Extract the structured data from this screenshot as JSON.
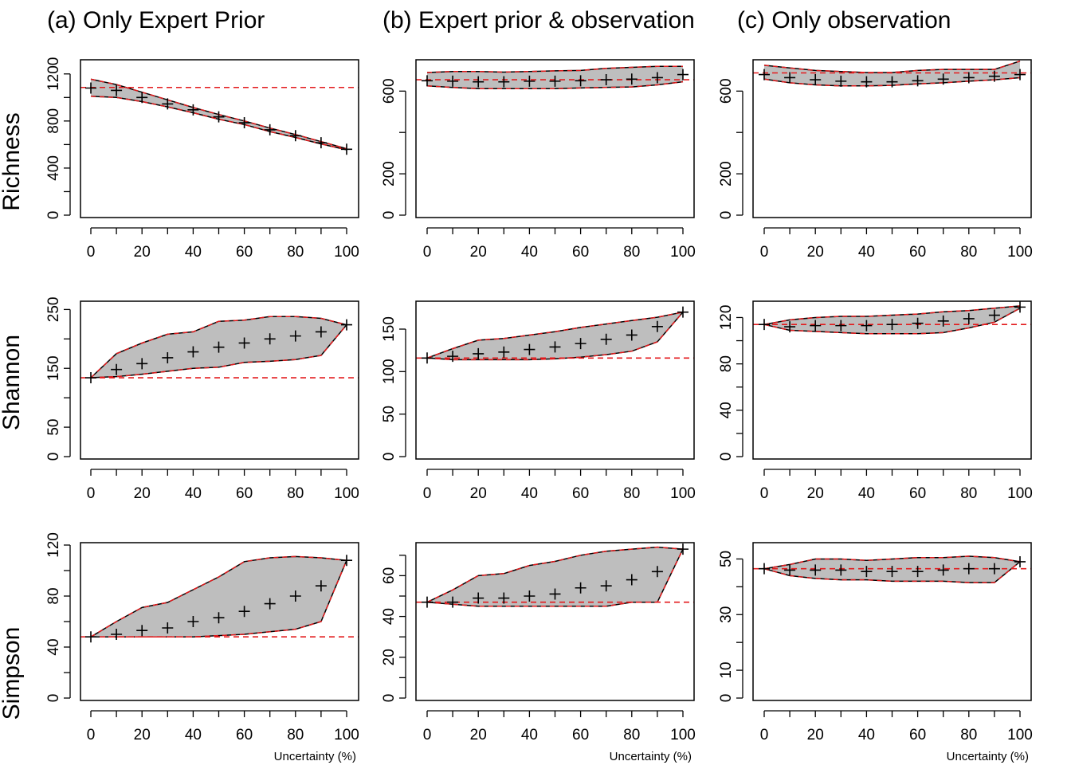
{
  "column_titles": [
    "(a) Only Expert Prior",
    "(b) Expert prior & observation",
    "(c) Only observation"
  ],
  "row_labels": [
    "Richness",
    "Shannon",
    "Simpson"
  ],
  "x_axis_label": "Uncertainty (%)",
  "colors": {
    "band_fill": "#bebebe",
    "line": "#000000",
    "reference": "#e31a1c"
  },
  "chart_data": [
    {
      "type": "area",
      "panel": "Richness / (a) Only Expert Prior",
      "xlim": [
        0,
        100
      ],
      "ylim": [
        0,
        1300
      ],
      "xticks": [
        0,
        20,
        40,
        60,
        80,
        100
      ],
      "yticks": [
        0,
        400,
        800,
        1200
      ],
      "reference": 1085,
      "x": [
        0,
        10,
        20,
        30,
        40,
        50,
        60,
        70,
        80,
        90,
        100
      ],
      "mean": [
        1080,
        1060,
        1000,
        945,
        895,
        835,
        785,
        725,
        675,
        615,
        560
      ],
      "upper": [
        1155,
        1110,
        1045,
        980,
        915,
        855,
        800,
        740,
        685,
        625,
        565
      ],
      "lower": [
        1010,
        1000,
        965,
        920,
        870,
        815,
        770,
        710,
        660,
        605,
        555
      ]
    },
    {
      "type": "area",
      "panel": "Shannon / (a) Only Expert Prior",
      "xlim": [
        0,
        100
      ],
      "ylim": [
        0,
        260
      ],
      "xticks": [
        0,
        20,
        40,
        60,
        80,
        100
      ],
      "yticks": [
        0,
        50,
        150,
        250
      ],
      "reference": 134,
      "x": [
        0,
        10,
        20,
        30,
        40,
        50,
        60,
        70,
        80,
        90,
        100
      ],
      "mean": [
        134,
        148,
        158,
        168,
        178,
        186,
        193,
        200,
        205,
        212,
        224
      ],
      "upper": [
        134,
        175,
        193,
        208,
        212,
        230,
        232,
        238,
        238,
        235,
        224
      ],
      "lower": [
        134,
        136,
        140,
        145,
        150,
        152,
        160,
        162,
        165,
        172,
        224
      ]
    },
    {
      "type": "area",
      "panel": "Simpson / (a) Only Expert Prior",
      "xlim": [
        0,
        100
      ],
      "ylim": [
        0,
        120
      ],
      "xticks": [
        0,
        20,
        40,
        60,
        80,
        100
      ],
      "yticks": [
        0,
        40,
        80,
        120
      ],
      "reference": 48,
      "x": [
        0,
        10,
        20,
        30,
        40,
        50,
        60,
        70,
        80,
        90,
        100
      ],
      "mean": [
        48,
        50,
        53,
        55,
        60,
        63,
        68,
        74,
        80,
        88,
        108
      ],
      "upper": [
        48,
        60,
        71,
        75,
        85,
        95,
        107,
        110,
        111,
        110,
        108
      ],
      "lower": [
        48,
        48,
        48,
        48,
        48,
        49,
        50,
        52,
        54,
        60,
        108
      ]
    },
    {
      "type": "area",
      "panel": "Richness / (b) Expert prior & observation",
      "xlim": [
        0,
        100
      ],
      "ylim": [
        0,
        740
      ],
      "xticks": [
        0,
        20,
        40,
        60,
        80,
        100
      ],
      "yticks": [
        0,
        200,
        600
      ],
      "reference": 655,
      "x": [
        0,
        10,
        20,
        30,
        40,
        50,
        60,
        70,
        80,
        90,
        100
      ],
      "mean": [
        650,
        648,
        645,
        645,
        648,
        648,
        650,
        655,
        658,
        665,
        680
      ],
      "upper": [
        690,
        695,
        695,
        692,
        695,
        698,
        700,
        710,
        715,
        720,
        720
      ],
      "lower": [
        625,
        618,
        612,
        612,
        612,
        612,
        615,
        618,
        620,
        630,
        645
      ]
    },
    {
      "type": "area",
      "panel": "Shannon / (b) Expert prior & observation",
      "xlim": [
        0,
        100
      ],
      "ylim": [
        0,
        180
      ],
      "xticks": [
        0,
        20,
        40,
        60,
        80,
        100
      ],
      "yticks": [
        0,
        50,
        100,
        150
      ],
      "reference": 116,
      "x": [
        0,
        10,
        20,
        30,
        40,
        50,
        60,
        70,
        80,
        90,
        100
      ],
      "mean": [
        116,
        118,
        121,
        123,
        126,
        129,
        133,
        138,
        143,
        153,
        170
      ],
      "upper": [
        116,
        127,
        137,
        139,
        143,
        147,
        152,
        156,
        160,
        164,
        170
      ],
      "lower": [
        116,
        114,
        114,
        114,
        114,
        115,
        117,
        120,
        124,
        135,
        170
      ]
    },
    {
      "type": "area",
      "panel": "Simpson / (b) Expert prior & observation",
      "xlim": [
        0,
        100
      ],
      "ylim": [
        0,
        75
      ],
      "xticks": [
        0,
        20,
        40,
        60,
        80,
        100
      ],
      "yticks": [
        0,
        20,
        40,
        60
      ],
      "reference": 47,
      "x": [
        0,
        10,
        20,
        30,
        40,
        50,
        60,
        70,
        80,
        90,
        100
      ],
      "mean": [
        47,
        47,
        49,
        49,
        50,
        51,
        54,
        55,
        58,
        62,
        73
      ],
      "upper": [
        47,
        53,
        60,
        61,
        65,
        67,
        70,
        72,
        73,
        74,
        73
      ],
      "lower": [
        47,
        46,
        45,
        45,
        45,
        45,
        45,
        45,
        47,
        47,
        73
      ]
    },
    {
      "type": "area",
      "panel": "Richness / (c) Only observation",
      "xlim": [
        0,
        100
      ],
      "ylim": [
        0,
        740
      ],
      "xticks": [
        0,
        20,
        40,
        60,
        80,
        100
      ],
      "yticks": [
        0,
        200,
        600
      ],
      "reference": 688,
      "x": [
        0,
        10,
        20,
        30,
        40,
        50,
        60,
        70,
        80,
        90,
        100
      ],
      "mean": [
        680,
        665,
        655,
        648,
        645,
        645,
        650,
        658,
        665,
        672,
        680
      ],
      "upper": [
        725,
        712,
        700,
        695,
        690,
        690,
        700,
        705,
        705,
        705,
        745
      ],
      "lower": [
        658,
        640,
        630,
        625,
        625,
        628,
        635,
        640,
        648,
        655,
        665
      ]
    },
    {
      "type": "area",
      "panel": "Shannon / (c) Only observation",
      "xlim": [
        0,
        100
      ],
      "ylim": [
        0,
        132
      ],
      "xticks": [
        0,
        20,
        40,
        60,
        80,
        100
      ],
      "yticks": [
        0,
        40,
        80,
        120
      ],
      "reference": 114,
      "x": [
        0,
        10,
        20,
        30,
        40,
        50,
        60,
        70,
        80,
        90,
        100
      ],
      "mean": [
        114,
        112,
        113,
        113,
        113,
        114,
        115,
        117,
        119,
        122,
        129
      ],
      "upper": [
        114,
        118,
        120,
        121,
        121,
        122,
        123,
        125,
        126,
        128,
        130
      ],
      "lower": [
        114,
        109,
        108,
        107,
        106,
        106,
        106,
        107,
        111,
        116,
        128
      ]
    },
    {
      "type": "area",
      "panel": "Simpson / (c) Only observation",
      "xlim": [
        0,
        100
      ],
      "ylim": [
        0,
        55
      ],
      "xticks": [
        0,
        20,
        40,
        60,
        80,
        100
      ],
      "yticks": [
        0,
        10,
        30,
        50
      ],
      "reference": 46.5,
      "x": [
        0,
        10,
        20,
        30,
        40,
        50,
        60,
        70,
        80,
        90,
        100
      ],
      "mean": [
        46.5,
        46,
        46,
        46,
        45.5,
        45.5,
        45.5,
        46,
        46.5,
        46.5,
        49
      ],
      "upper": [
        46.5,
        48,
        50,
        50,
        49.5,
        50,
        50.5,
        50.5,
        51,
        50.5,
        49
      ],
      "lower": [
        46.5,
        44,
        43,
        42.5,
        42.5,
        42,
        42,
        42,
        41.5,
        41.5,
        49
      ]
    }
  ]
}
